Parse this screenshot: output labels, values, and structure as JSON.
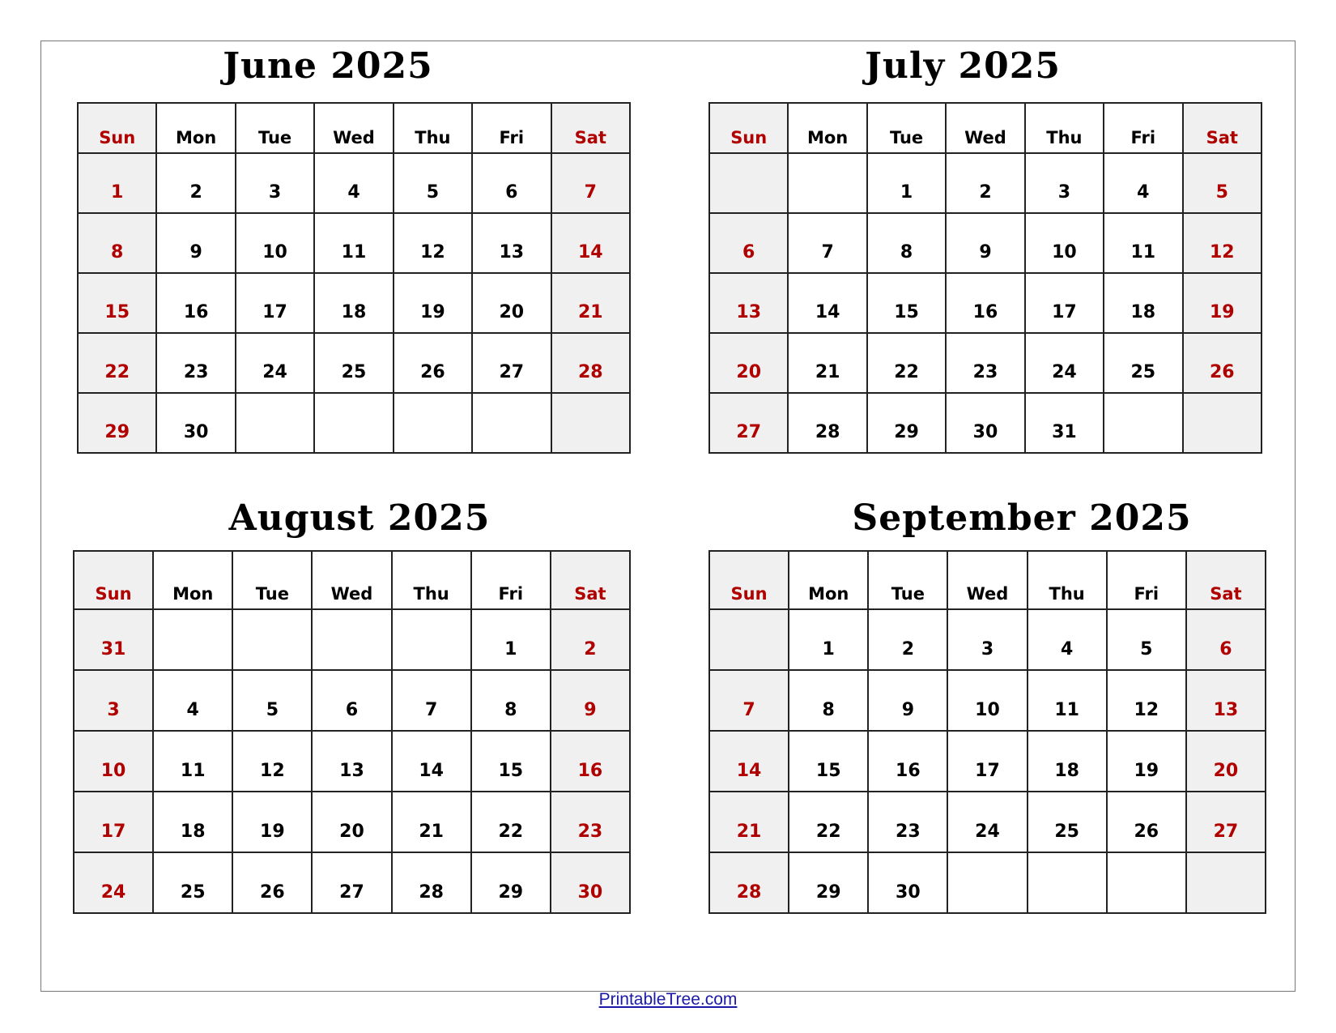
{
  "weekdays": [
    "Sun",
    "Mon",
    "Tue",
    "Wed",
    "Thu",
    "Fri",
    "Sat"
  ],
  "colors": {
    "weekend_text": "#b00000",
    "weekend_fill": "#f0f0f0",
    "border": "#222222",
    "link": "#1a1aa6"
  },
  "months": [
    {
      "title": "June 2025",
      "weeks": [
        [
          "1",
          "2",
          "3",
          "4",
          "5",
          "6",
          "7"
        ],
        [
          "8",
          "9",
          "10",
          "11",
          "12",
          "13",
          "14"
        ],
        [
          "15",
          "16",
          "17",
          "18",
          "19",
          "20",
          "21"
        ],
        [
          "22",
          "23",
          "24",
          "25",
          "26",
          "27",
          "28"
        ],
        [
          "29",
          "30",
          "",
          "",
          "",
          "",
          ""
        ]
      ]
    },
    {
      "title": "July 2025",
      "weeks": [
        [
          "",
          "",
          "1",
          "2",
          "3",
          "4",
          "5"
        ],
        [
          "6",
          "7",
          "8",
          "9",
          "10",
          "11",
          "12"
        ],
        [
          "13",
          "14",
          "15",
          "16",
          "17",
          "18",
          "19"
        ],
        [
          "20",
          "21",
          "22",
          "23",
          "24",
          "25",
          "26"
        ],
        [
          "27",
          "28",
          "29",
          "30",
          "31",
          "",
          ""
        ]
      ]
    },
    {
      "title": "August 2025",
      "weeks": [
        [
          "31",
          "",
          "",
          "",
          "",
          "1",
          "2"
        ],
        [
          "3",
          "4",
          "5",
          "6",
          "7",
          "8",
          "9"
        ],
        [
          "10",
          "11",
          "12",
          "13",
          "14",
          "15",
          "16"
        ],
        [
          "17",
          "18",
          "19",
          "20",
          "21",
          "22",
          "23"
        ],
        [
          "24",
          "25",
          "26",
          "27",
          "28",
          "29",
          "30"
        ]
      ]
    },
    {
      "title": "September 2025",
      "weeks": [
        [
          "",
          "1",
          "2",
          "3",
          "4",
          "5",
          "6"
        ],
        [
          "7",
          "8",
          "9",
          "10",
          "11",
          "12",
          "13"
        ],
        [
          "14",
          "15",
          "16",
          "17",
          "18",
          "19",
          "20"
        ],
        [
          "21",
          "22",
          "23",
          "24",
          "25",
          "26",
          "27"
        ],
        [
          "28",
          "29",
          "30",
          "",
          "",
          "",
          ""
        ]
      ]
    }
  ],
  "footer": {
    "link": "PrintableTree.com"
  }
}
